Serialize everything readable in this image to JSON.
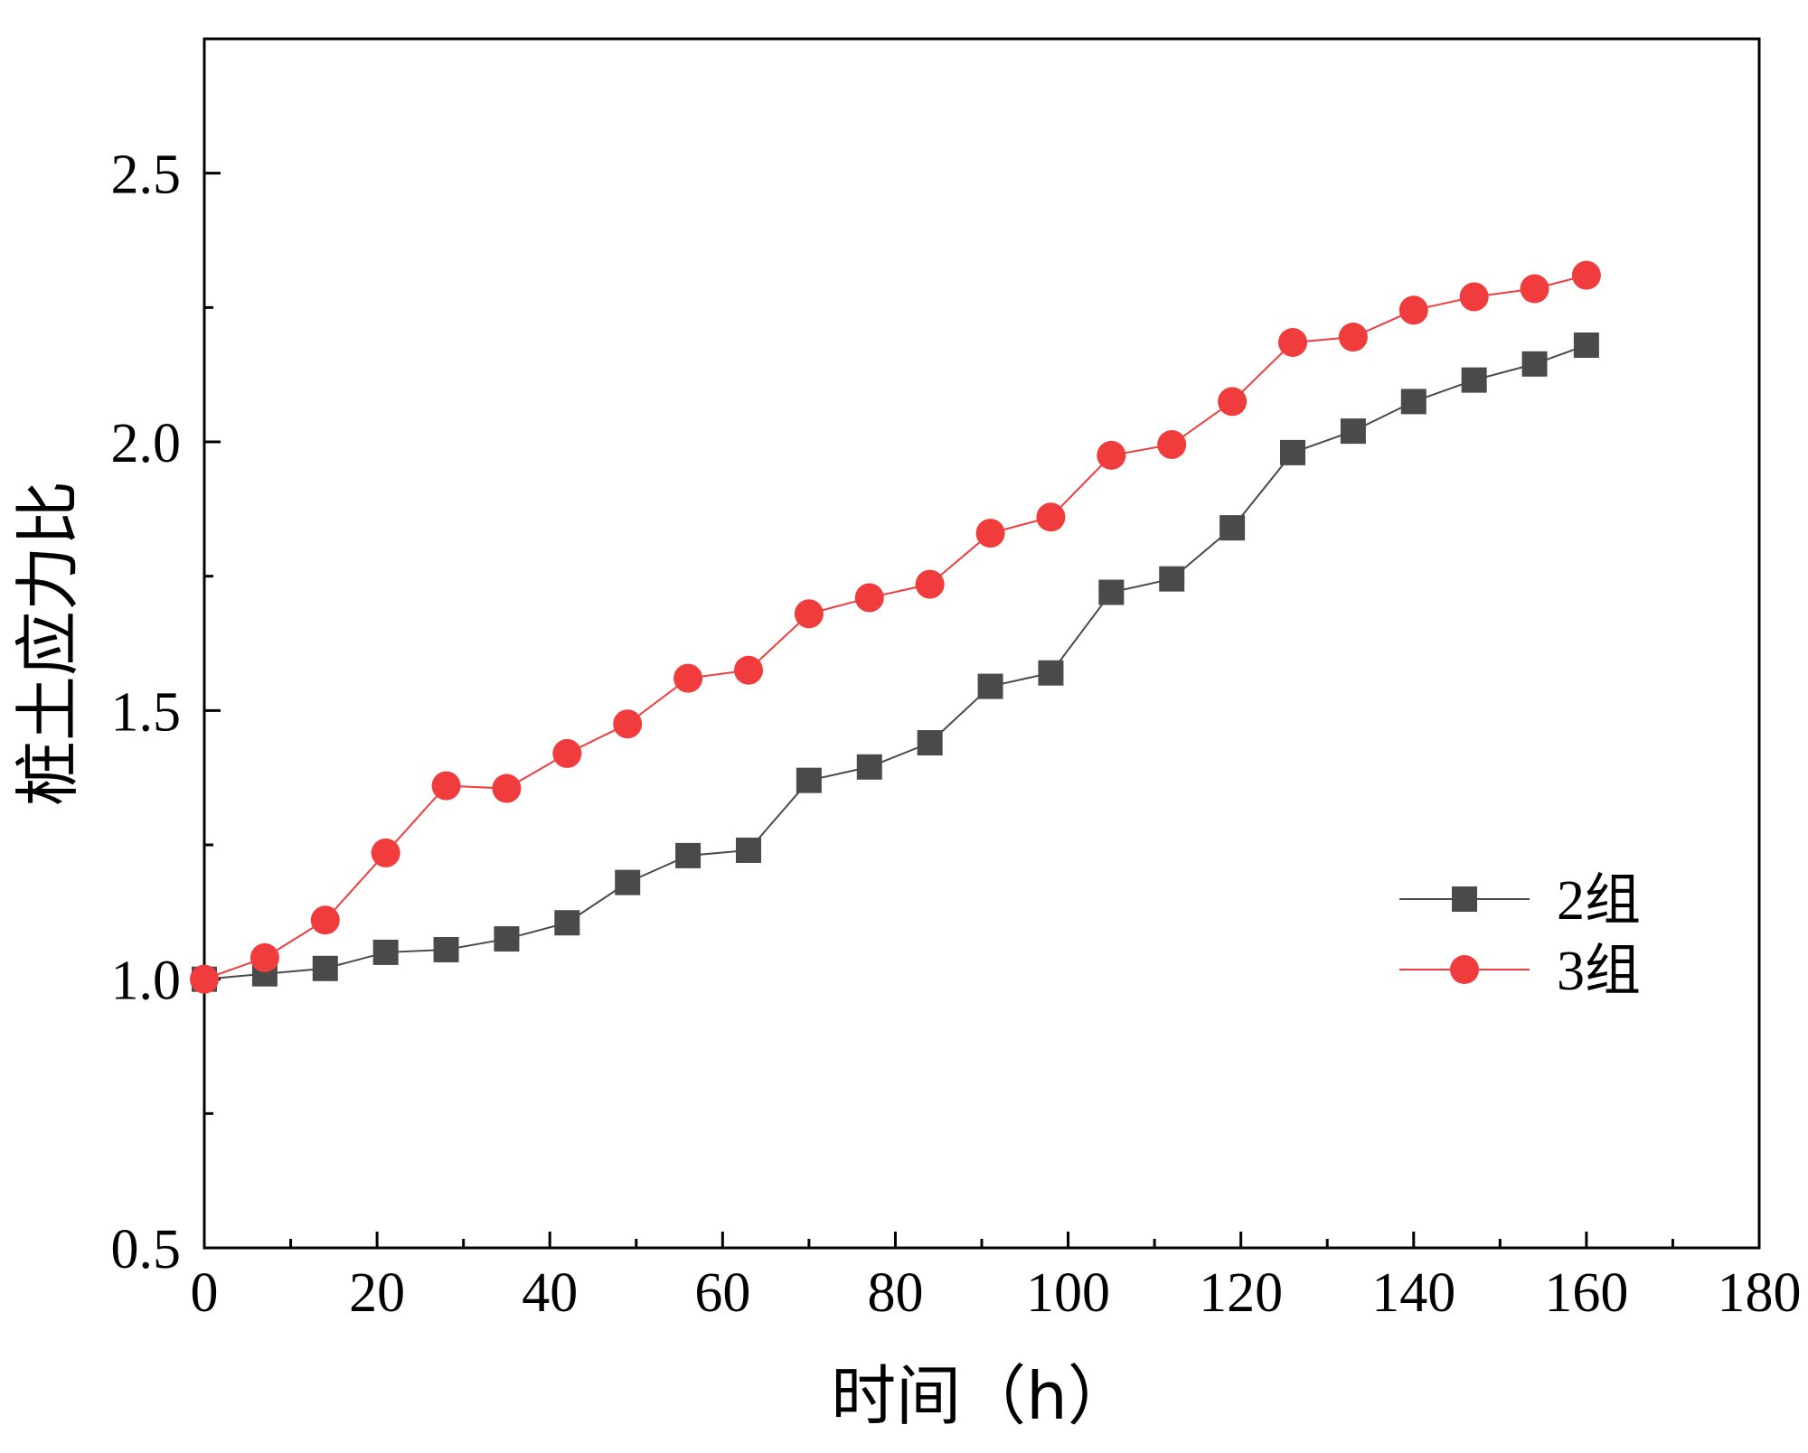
{
  "chart_data": {
    "type": "line",
    "title": "",
    "xlabel": "时间（h）",
    "ylabel": "桩土应力比",
    "xlim": [
      0,
      180
    ],
    "ylim": [
      0.5,
      2.75
    ],
    "x_ticks": [
      0,
      20,
      40,
      60,
      80,
      100,
      120,
      140,
      160,
      180
    ],
    "x_tick_labels": [
      "0",
      "20",
      "40",
      "60",
      "80",
      "100",
      "120",
      "140",
      "160",
      "180"
    ],
    "y_ticks": [
      0.5,
      1.0,
      1.5,
      2.0,
      2.5
    ],
    "y_tick_labels": [
      "0.5",
      "1.0",
      "1.5",
      "2.0",
      "2.5"
    ],
    "grid": false,
    "legend_position": "right",
    "series": [
      {
        "name": "2组",
        "marker": "square",
        "color": "#4a4a4a",
        "x": [
          0,
          7,
          14,
          21,
          28,
          35,
          42,
          49,
          56,
          63,
          70,
          77,
          84,
          91,
          98,
          105,
          112,
          119,
          126,
          133,
          140,
          147,
          154,
          160
        ],
        "y": [
          1.0,
          1.01,
          1.02,
          1.05,
          1.055,
          1.075,
          1.105,
          1.18,
          1.23,
          1.24,
          1.37,
          1.395,
          1.44,
          1.545,
          1.57,
          1.72,
          1.745,
          1.84,
          1.98,
          2.02,
          2.075,
          2.115,
          2.145,
          2.18
        ]
      },
      {
        "name": "3组",
        "marker": "circle",
        "color": "#f03c3c",
        "x": [
          0,
          7,
          14,
          21,
          28,
          35,
          42,
          49,
          56,
          63,
          70,
          77,
          84,
          91,
          98,
          105,
          112,
          119,
          126,
          133,
          140,
          147,
          154,
          160
        ],
        "y": [
          1.0,
          1.04,
          1.11,
          1.235,
          1.36,
          1.355,
          1.42,
          1.475,
          1.56,
          1.575,
          1.68,
          1.71,
          1.735,
          1.83,
          1.86,
          1.975,
          1.995,
          2.075,
          2.185,
          2.195,
          2.245,
          2.27,
          2.285,
          2.31
        ]
      }
    ]
  }
}
